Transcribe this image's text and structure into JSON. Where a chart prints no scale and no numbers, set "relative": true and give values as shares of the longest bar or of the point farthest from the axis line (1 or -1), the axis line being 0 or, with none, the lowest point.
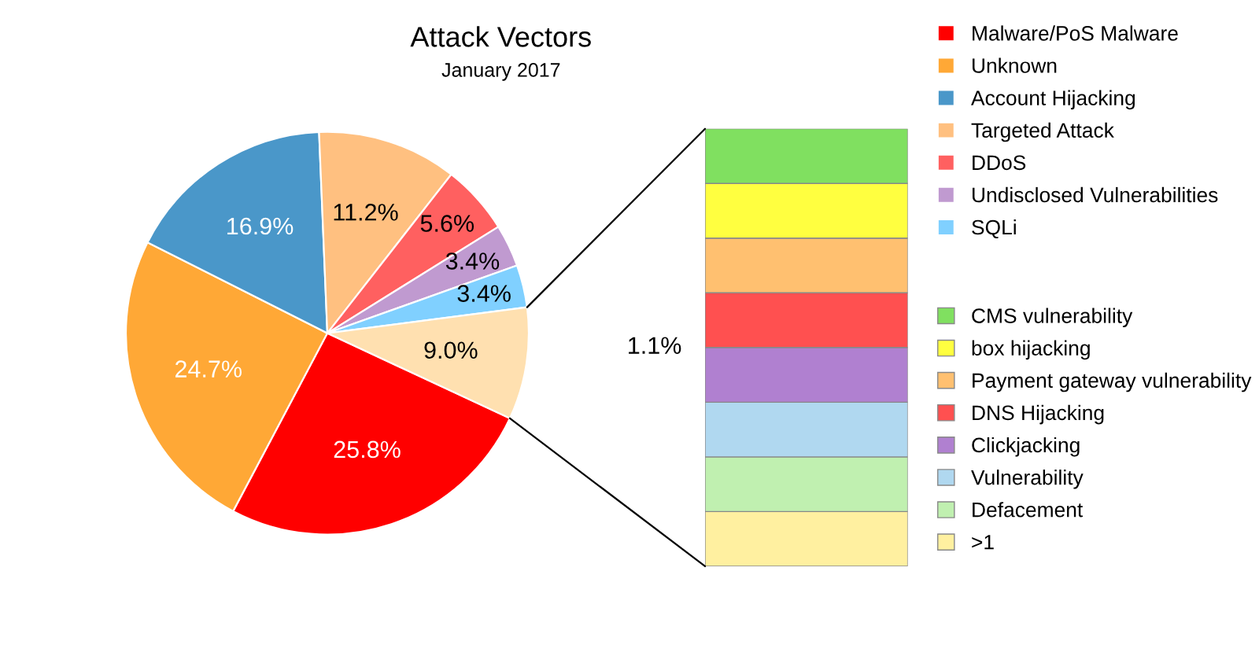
{
  "chart_data": [
    {
      "type": "pie",
      "title": "Attack Vectors",
      "subtitle": "January 2017",
      "categories": [
        "Malware/PoS Malware",
        "Unknown",
        "Account Hijacking",
        "Targeted Attack",
        "DDoS",
        "Undisclosed Vulnerabilities",
        "SQLi",
        null
      ],
      "values": [
        25.8,
        24.7,
        16.9,
        11.2,
        5.6,
        3.4,
        3.4,
        9.0
      ],
      "value_labels": [
        "25.8%",
        "24.7%",
        "16.9%",
        "11.2%",
        "5.6%",
        "3.4%",
        "3.4%",
        "9.0%"
      ],
      "colors": [
        "#ff0000",
        "#ffa836",
        "#4a97c9",
        "#ffc080",
        "#ff6060",
        "#c09ad0",
        "#80d0ff",
        "#ffe0b0"
      ],
      "legend": "right"
    },
    {
      "type": "bar",
      "stacked": true,
      "relative": true,
      "categories": [
        null
      ],
      "annotations": [
        "1.1%"
      ],
      "legend": "right",
      "series": [
        {
          "name": "CMS vulnerability",
          "color": "#80e060",
          "values": [
            0.125
          ]
        },
        {
          "name": "box hijacking",
          "color": "#ffff40",
          "values": [
            0.125
          ]
        },
        {
          "name": "Payment gateway vulnerability",
          "color": "#ffc070",
          "values": [
            0.125
          ]
        },
        {
          "name": "DNS Hijacking",
          "color": "#ff5050",
          "values": [
            0.125
          ]
        },
        {
          "name": "Clickjacking",
          "color": "#b080d0",
          "values": [
            0.125
          ]
        },
        {
          "name": "Vulnerability",
          "color": "#b0d8f0",
          "values": [
            0.125
          ]
        },
        {
          "name": "Defacement",
          "color": "#c0f0b0",
          "values": [
            0.125
          ]
        },
        {
          "name": ">1",
          "color": "#fff0a0",
          "values": [
            0.125
          ]
        }
      ]
    }
  ]
}
